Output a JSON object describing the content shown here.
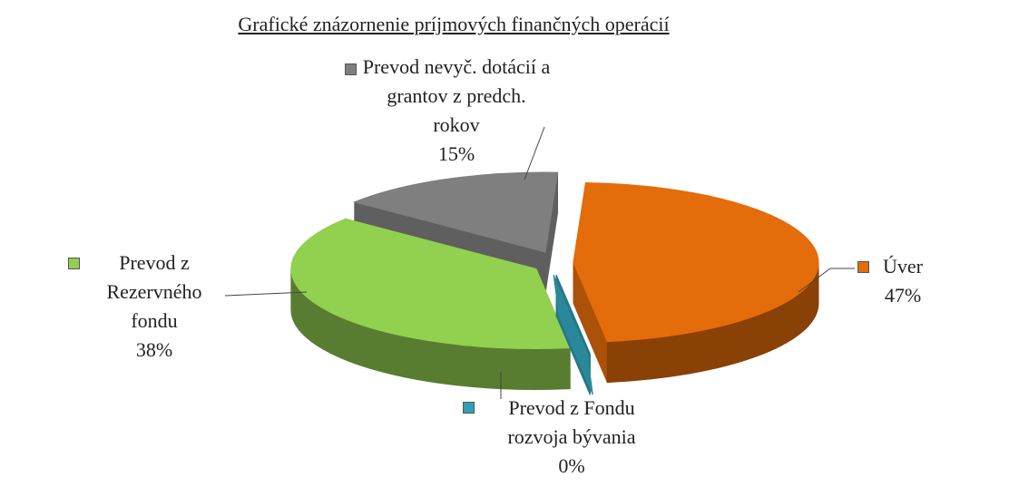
{
  "chart_data": {
    "type": "pie",
    "title": "Grafické znázornenie príjmových finančných operácií",
    "categories": [
      "Úver",
      "Prevod z Fondu rozvoja bývania",
      "Prevod z Rezervného fondu",
      "Prevod nevyč. dotácií a grantov z predch. rokov"
    ],
    "values": [
      47,
      0,
      38,
      15
    ],
    "value_labels": [
      "47%",
      "0%",
      "38%",
      "15%"
    ],
    "colors": [
      "#e46c0a",
      "#31a0b5",
      "#92d050",
      "#7f7f7f"
    ]
  }
}
